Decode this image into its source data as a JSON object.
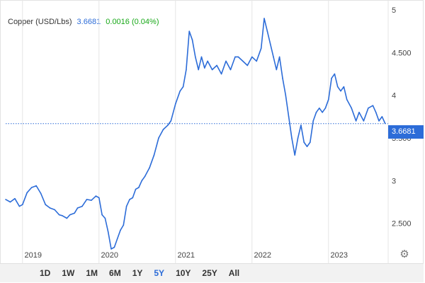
{
  "legend": {
    "name": "Copper (USD/Lbs)",
    "price": "3.6681",
    "change": "0.0016 (0.04%)"
  },
  "current_price_label": "3.6681",
  "range_buttons": [
    "1D",
    "1W",
    "1M",
    "6M",
    "1Y",
    "5Y",
    "10Y",
    "25Y",
    "All"
  ],
  "active_range": "5Y",
  "colors": {
    "line": "#2c6cd8",
    "change_positive": "#18a818",
    "price_tag": "#2c6cd8"
  },
  "icons": {
    "settings": "gear-icon"
  },
  "chart_data": {
    "type": "line",
    "title": "Copper (USD/Lbs)",
    "xlabel": "",
    "ylabel": "",
    "x_ticks": [
      "2019",
      "2020",
      "2021",
      "2022",
      "2023"
    ],
    "y_ticks": [
      "5",
      "4.500",
      "4",
      "3.500",
      "3",
      "2.500"
    ],
    "y_tick_values": [
      5,
      4.5,
      4,
      3.5,
      3,
      2.5
    ],
    "ylim": [
      2.05,
      5.05
    ],
    "xlim": [
      2018.78,
      2023.78
    ],
    "reference_line": 3.6681,
    "grid": {
      "vertical": true,
      "horizontal": false
    },
    "legend_position": "top-left",
    "series": [
      {
        "x": [
          2018.78,
          2018.84,
          2018.9,
          2018.96,
          2019.0,
          2019.06,
          2019.12,
          2019.18,
          2019.24,
          2019.3,
          2019.36,
          2019.42,
          2019.48,
          2019.52,
          2019.58,
          2019.62,
          2019.68,
          2019.72,
          2019.78,
          2019.84,
          2019.9,
          2019.96,
          2020.0,
          2020.04,
          2020.08,
          2020.12,
          2020.16,
          2020.2,
          2020.24,
          2020.28,
          2020.32,
          2020.36,
          2020.4,
          2020.44,
          2020.48,
          2020.52,
          2020.56,
          2020.6,
          2020.66,
          2020.72,
          2020.78,
          2020.84,
          2020.9,
          2020.94,
          2021.0,
          2021.06,
          2021.1,
          2021.14,
          2021.18,
          2021.22,
          2021.26,
          2021.3,
          2021.34,
          2021.38,
          2021.42,
          2021.48,
          2021.54,
          2021.6,
          2021.66,
          2021.72,
          2021.78,
          2021.82,
          2021.88,
          2021.94,
          2022.0,
          2022.06,
          2022.12,
          2022.16,
          2022.2,
          2022.24,
          2022.28,
          2022.32,
          2022.36,
          2022.4,
          2022.44,
          2022.48,
          2022.52,
          2022.56,
          2022.6,
          2022.64,
          2022.68,
          2022.72,
          2022.76,
          2022.8,
          2022.84,
          2022.88,
          2022.92,
          2022.96,
          2023.0,
          2023.04,
          2023.08,
          2023.12,
          2023.16,
          2023.2,
          2023.24,
          2023.3,
          2023.36,
          2023.4,
          2023.46,
          2023.52,
          2023.58,
          2023.62,
          2023.66,
          2023.7,
          2023.74
        ],
        "values": [
          2.78,
          2.75,
          2.79,
          2.7,
          2.72,
          2.86,
          2.92,
          2.94,
          2.85,
          2.72,
          2.68,
          2.66,
          2.6,
          2.59,
          2.56,
          2.6,
          2.62,
          2.68,
          2.7,
          2.78,
          2.77,
          2.82,
          2.8,
          2.6,
          2.56,
          2.4,
          2.2,
          2.22,
          2.32,
          2.42,
          2.48,
          2.7,
          2.78,
          2.8,
          2.9,
          2.92,
          3.0,
          3.05,
          3.15,
          3.3,
          3.5,
          3.6,
          3.65,
          3.7,
          3.9,
          4.05,
          4.1,
          4.3,
          4.75,
          4.65,
          4.45,
          4.3,
          4.45,
          4.32,
          4.4,
          4.3,
          4.35,
          4.25,
          4.4,
          4.3,
          4.45,
          4.45,
          4.4,
          4.35,
          4.45,
          4.4,
          4.55,
          4.9,
          4.75,
          4.6,
          4.45,
          4.3,
          4.45,
          4.2,
          4.0,
          3.75,
          3.5,
          3.3,
          3.5,
          3.65,
          3.45,
          3.4,
          3.45,
          3.7,
          3.8,
          3.85,
          3.8,
          3.85,
          3.95,
          4.2,
          4.25,
          4.1,
          4.05,
          4.1,
          3.95,
          3.85,
          3.7,
          3.8,
          3.7,
          3.85,
          3.88,
          3.8,
          3.7,
          3.75,
          3.67
        ]
      }
    ]
  }
}
